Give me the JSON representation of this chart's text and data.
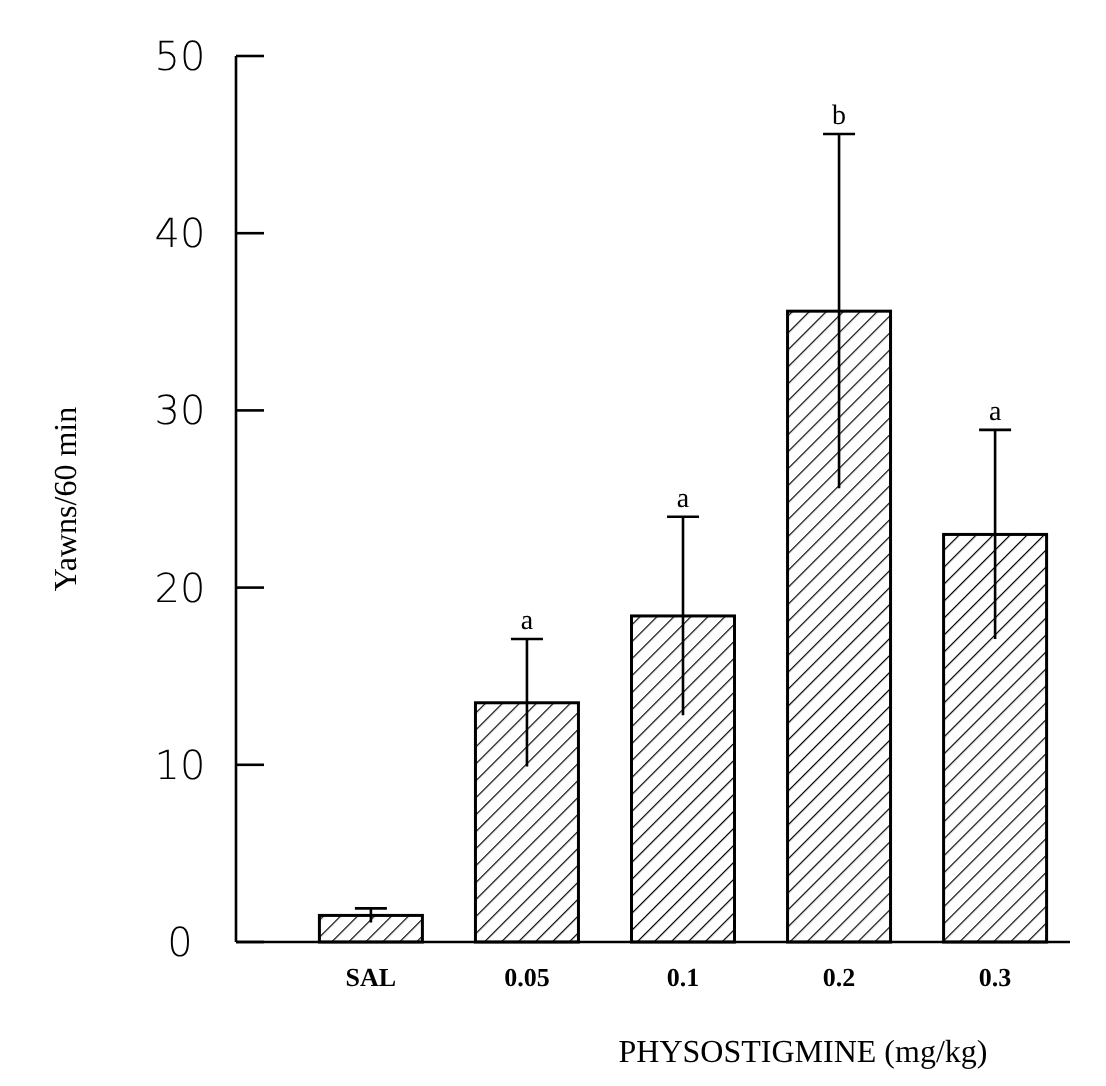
{
  "chart_data": {
    "type": "bar",
    "xlabel": "PHYSOSTIGMINE (mg/kg)",
    "ylabel": "Yawns/60 min",
    "categories": [
      "SAL",
      "0.05",
      "0.1",
      "0.2",
      "0.3"
    ],
    "values": [
      1.5,
      13.5,
      18.4,
      35.6,
      23.0
    ],
    "errors": [
      0.4,
      3.6,
      5.6,
      10,
      5.9
    ],
    "color": "#000000",
    "ylim": [
      0,
      50
    ],
    "yticks": [
      0,
      10,
      20,
      30,
      40,
      50
    ],
    "grid": false,
    "annotations": [
      "a",
      "a",
      "b",
      "a"
    ]
  }
}
